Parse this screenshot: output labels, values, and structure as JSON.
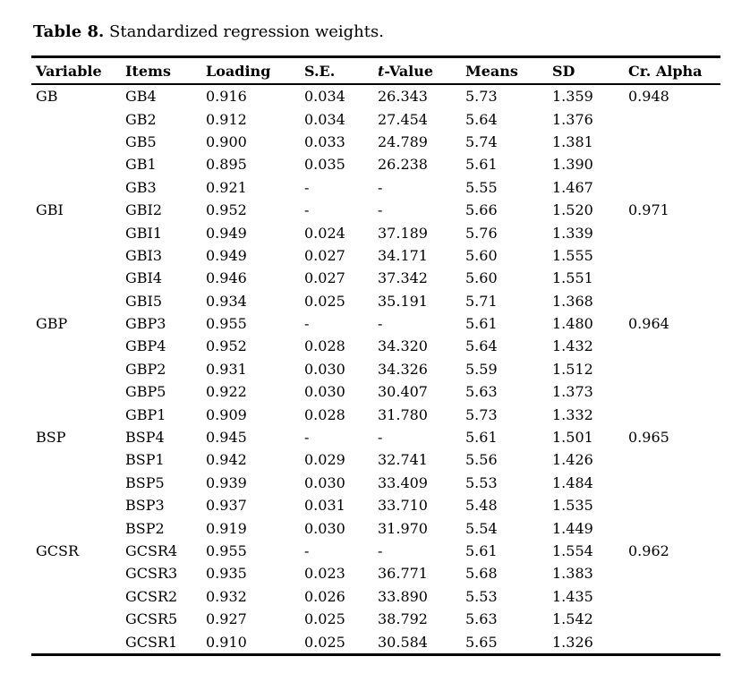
{
  "caption": {
    "bold": "Table 8.",
    "rest": " Standardized regression weights."
  },
  "table": {
    "columns": [
      {
        "label": "Variable"
      },
      {
        "label": "Items"
      },
      {
        "label": "Loading"
      },
      {
        "label": "S.E."
      },
      {
        "italic": "t",
        "label": "-Value"
      },
      {
        "label": "Means"
      },
      {
        "label": "SD"
      },
      {
        "label": "Cr. Alpha"
      }
    ],
    "column_keys": [
      "variable",
      "item",
      "loading",
      "se",
      "t-value",
      "means",
      "sd",
      "cr-alpha"
    ],
    "rows": [
      [
        "GB",
        "GB4",
        "0.916",
        "0.034",
        "26.343",
        "5.73",
        "1.359",
        "0.948"
      ],
      [
        "",
        "GB2",
        "0.912",
        "0.034",
        "27.454",
        "5.64",
        "1.376",
        ""
      ],
      [
        "",
        "GB5",
        "0.900",
        "0.033",
        "24.789",
        "5.74",
        "1.381",
        ""
      ],
      [
        "",
        "GB1",
        "0.895",
        "0.035",
        "26.238",
        "5.61",
        "1.390",
        ""
      ],
      [
        "",
        "GB3",
        "0.921",
        "-",
        "-",
        "5.55",
        "1.467",
        ""
      ],
      [
        "GBI",
        "GBI2",
        "0.952",
        "-",
        "-",
        "5.66",
        "1.520",
        "0.971"
      ],
      [
        "",
        "GBI1",
        "0.949",
        "0.024",
        "37.189",
        "5.76",
        "1.339",
        ""
      ],
      [
        "",
        "GBI3",
        "0.949",
        "0.027",
        "34.171",
        "5.60",
        "1.555",
        ""
      ],
      [
        "",
        "GBI4",
        "0.946",
        "0.027",
        "37.342",
        "5.60",
        "1.551",
        ""
      ],
      [
        "",
        "GBI5",
        "0.934",
        "0.025",
        "35.191",
        "5.71",
        "1.368",
        ""
      ],
      [
        "GBP",
        "GBP3",
        "0.955",
        "-",
        "-",
        "5.61",
        "1.480",
        "0.964"
      ],
      [
        "",
        "GBP4",
        "0.952",
        "0.028",
        "34.320",
        "5.64",
        "1.432",
        ""
      ],
      [
        "",
        "GBP2",
        "0.931",
        "0.030",
        "34.326",
        "5.59",
        "1.512",
        ""
      ],
      [
        "",
        "GBP5",
        "0.922",
        "0.030",
        "30.407",
        "5.63",
        "1.373",
        ""
      ],
      [
        "",
        "GBP1",
        "0.909",
        "0.028",
        "31.780",
        "5.73",
        "1.332",
        ""
      ],
      [
        "BSP",
        "BSP4",
        "0.945",
        "-",
        "-",
        "5.61",
        "1.501",
        "0.965"
      ],
      [
        "",
        "BSP1",
        "0.942",
        "0.029",
        "32.741",
        "5.56",
        "1.426",
        ""
      ],
      [
        "",
        "BSP5",
        "0.939",
        "0.030",
        "33.409",
        "5.53",
        "1.484",
        ""
      ],
      [
        "",
        "BSP3",
        "0.937",
        "0.031",
        "33.710",
        "5.48",
        "1.535",
        ""
      ],
      [
        "",
        "BSP2",
        "0.919",
        "0.030",
        "31.970",
        "5.54",
        "1.449",
        ""
      ],
      [
        "GCSR",
        "GCSR4",
        "0.955",
        "-",
        "-",
        "5.61",
        "1.554",
        "0.962"
      ],
      [
        "",
        "GCSR3",
        "0.935",
        "0.023",
        "36.771",
        "5.68",
        "1.383",
        ""
      ],
      [
        "",
        "GCSR2",
        "0.932",
        "0.026",
        "33.890",
        "5.53",
        "1.435",
        ""
      ],
      [
        "",
        "GCSR5",
        "0.927",
        "0.025",
        "38.792",
        "5.63",
        "1.542",
        ""
      ],
      [
        "",
        "GCSR1",
        "0.910",
        "0.025",
        "30.584",
        "5.65",
        "1.326",
        ""
      ]
    ]
  }
}
